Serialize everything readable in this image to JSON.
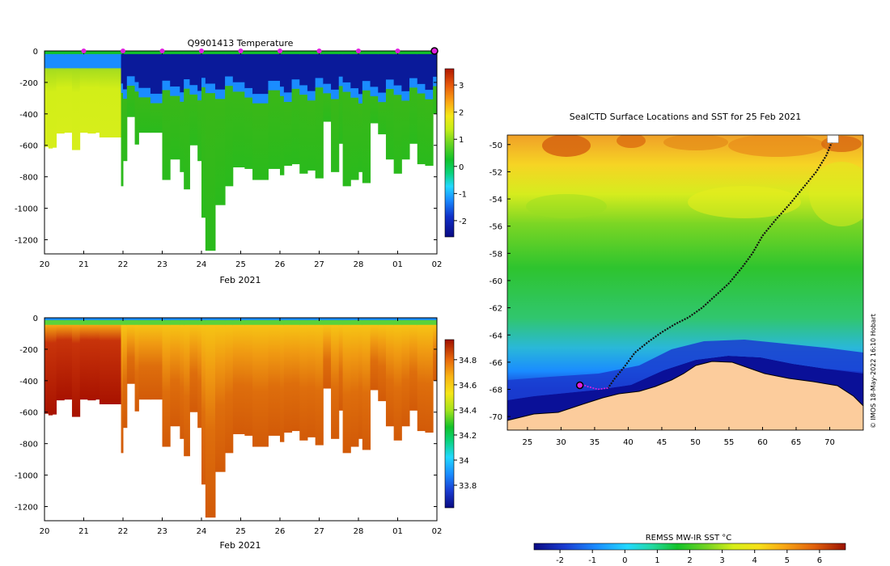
{
  "chart_data": [
    {
      "id": "temperature-section",
      "type": "heatmap",
      "title": "Q9901413  Temperature",
      "xlabel": "Feb 2021",
      "ylabel": "",
      "x_tick_labels": [
        "20",
        "21",
        "22",
        "23",
        "24",
        "25",
        "26",
        "27",
        "28",
        "01",
        "02"
      ],
      "y_tick_labels": [
        "0",
        "-200",
        "-400",
        "-600",
        "-800",
        "-1000",
        "-1200"
      ],
      "y_ticks": [
        0,
        -200,
        -400,
        -600,
        -800,
        -1000,
        -1200
      ],
      "ylim": [
        -1290,
        0
      ],
      "xlim": [
        20,
        30
      ],
      "surface_markers_x": [
        21,
        22,
        23,
        24,
        25,
        26,
        27,
        28,
        29
      ],
      "current_marker_x": 30,
      "colorbar": {
        "range": [
          -2.6,
          3.6
        ],
        "tick_labels": [
          "3",
          "2",
          "1",
          "0",
          "-1",
          "-2"
        ],
        "ticks": [
          3,
          2,
          1,
          0,
          -1,
          -2
        ]
      },
      "profiles": [
        {
          "x": 20.0,
          "max_depth": 610
        },
        {
          "x": 20.1,
          "max_depth": 620
        },
        {
          "x": 20.2,
          "max_depth": 615
        },
        {
          "x": 20.3,
          "max_depth": 525
        },
        {
          "x": 20.5,
          "max_depth": 520
        },
        {
          "x": 20.7,
          "max_depth": 630
        },
        {
          "x": 20.9,
          "max_depth": 520
        },
        {
          "x": 21.1,
          "max_depth": 525
        },
        {
          "x": 21.3,
          "max_depth": 520
        },
        {
          "x": 21.4,
          "max_depth": 550
        },
        {
          "x": 21.7,
          "max_depth": 550
        },
        {
          "x": 21.95,
          "max_depth": 860
        },
        {
          "x": 22.0,
          "max_depth": 700
        },
        {
          "x": 22.1,
          "max_depth": 420
        },
        {
          "x": 22.3,
          "max_depth": 595
        },
        {
          "x": 22.4,
          "max_depth": 520
        },
        {
          "x": 22.7,
          "max_depth": 520
        },
        {
          "x": 23.0,
          "max_depth": 820
        },
        {
          "x": 23.2,
          "max_depth": 690
        },
        {
          "x": 23.45,
          "max_depth": 770
        },
        {
          "x": 23.55,
          "max_depth": 880
        },
        {
          "x": 23.7,
          "max_depth": 600
        },
        {
          "x": 23.9,
          "max_depth": 700
        },
        {
          "x": 24.0,
          "max_depth": 1060
        },
        {
          "x": 24.1,
          "max_depth": 1270
        },
        {
          "x": 24.35,
          "max_depth": 980
        },
        {
          "x": 24.6,
          "max_depth": 860
        },
        {
          "x": 24.8,
          "max_depth": 740
        },
        {
          "x": 25.1,
          "max_depth": 750
        },
        {
          "x": 25.3,
          "max_depth": 820
        },
        {
          "x": 25.7,
          "max_depth": 750
        },
        {
          "x": 26.0,
          "max_depth": 790
        },
        {
          "x": 26.1,
          "max_depth": 730
        },
        {
          "x": 26.3,
          "max_depth": 720
        },
        {
          "x": 26.5,
          "max_depth": 780
        },
        {
          "x": 26.7,
          "max_depth": 760
        },
        {
          "x": 26.9,
          "max_depth": 810
        },
        {
          "x": 27.1,
          "max_depth": 450
        },
        {
          "x": 27.3,
          "max_depth": 770
        },
        {
          "x": 27.5,
          "max_depth": 590
        },
        {
          "x": 27.6,
          "max_depth": 860
        },
        {
          "x": 27.8,
          "max_depth": 820
        },
        {
          "x": 28.0,
          "max_depth": 770
        },
        {
          "x": 28.1,
          "max_depth": 840
        },
        {
          "x": 28.3,
          "max_depth": 460
        },
        {
          "x": 28.5,
          "max_depth": 530
        },
        {
          "x": 28.7,
          "max_depth": 690
        },
        {
          "x": 28.9,
          "max_depth": 780
        },
        {
          "x": 29.1,
          "max_depth": 690
        },
        {
          "x": 29.3,
          "max_depth": 590
        },
        {
          "x": 29.5,
          "max_depth": 720
        },
        {
          "x": 29.7,
          "max_depth": 730
        },
        {
          "x": 29.9,
          "max_depth": 400
        }
      ]
    },
    {
      "id": "salinity-section",
      "type": "heatmap",
      "title": "",
      "xlabel": "Feb 2021",
      "ylabel": "",
      "x_tick_labels": [
        "20",
        "21",
        "22",
        "23",
        "24",
        "25",
        "26",
        "27",
        "28",
        "01",
        "02"
      ],
      "y_tick_labels": [
        "0",
        "-200",
        "-400",
        "-600",
        "-800",
        "-1000",
        "-1200"
      ],
      "y_ticks": [
        0,
        -200,
        -400,
        -600,
        -800,
        -1000,
        -1200
      ],
      "ylim": [
        -1290,
        0
      ],
      "xlim": [
        20,
        30
      ],
      "colorbar": {
        "range": [
          33.62,
          34.96
        ],
        "tick_labels": [
          "34.8",
          "34.6",
          "34.4",
          "34.2",
          "34",
          "33.8"
        ],
        "ticks": [
          34.8,
          34.6,
          34.4,
          34.2,
          34.0,
          33.8
        ]
      }
    },
    {
      "id": "sst-map",
      "type": "heatmap",
      "title": "SealCTD Surface Locations and SST for 25 Feb 2021",
      "xlabel": "",
      "ylabel": "",
      "x_tick_labels": [
        "25",
        "30",
        "35",
        "40",
        "45",
        "50",
        "55",
        "60",
        "65",
        "70"
      ],
      "x_ticks": [
        25,
        30,
        35,
        40,
        45,
        50,
        55,
        60,
        65,
        70
      ],
      "y_tick_labels": [
        "-50",
        "-52",
        "-54",
        "-56",
        "-58",
        "-60",
        "-62",
        "-64",
        "-66",
        "-68",
        "-70"
      ],
      "y_ticks": [
        -50,
        -52,
        -54,
        -56,
        -58,
        -60,
        -62,
        -64,
        -66,
        -68,
        -70
      ],
      "xlim": [
        22,
        75
      ],
      "ylim": [
        -71,
        -49.3
      ],
      "colorbar": {
        "label": "REMSS MW-IR SST °C",
        "range": [
          -2.8,
          6.8
        ],
        "tick_labels": [
          "-2",
          "-1",
          "0",
          "1",
          "2",
          "3",
          "4",
          "5",
          "6"
        ],
        "ticks": [
          -2,
          -1,
          0,
          1,
          2,
          3,
          4,
          5,
          6
        ]
      },
      "track": [
        [
          70.5,
          -49.6
        ],
        [
          69.5,
          -50.8
        ],
        [
          68,
          -52
        ],
        [
          66,
          -53.2
        ],
        [
          64,
          -54.4
        ],
        [
          62,
          -55.5
        ],
        [
          60,
          -56.7
        ],
        [
          58.5,
          -58
        ],
        [
          57,
          -59
        ],
        [
          55,
          -60.2
        ],
        [
          53,
          -61.1
        ],
        [
          51,
          -62
        ],
        [
          49,
          -62.7
        ],
        [
          47,
          -63.2
        ],
        [
          45,
          -63.8
        ],
        [
          43,
          -64.5
        ],
        [
          41,
          -65.3
        ],
        [
          39.5,
          -66.3
        ],
        [
          38,
          -67.2
        ],
        [
          37,
          -67.9
        ]
      ],
      "track_tail": [
        [
          37,
          -67.9
        ],
        [
          35.5,
          -68
        ],
        [
          34,
          -67.8
        ],
        [
          33,
          -67.6
        ]
      ],
      "current_location": [
        32.8,
        -67.7
      ],
      "start_location": [
        70.6,
        -49.4
      ]
    }
  ],
  "copyright": "© IMOS 18-May-2022 16:10 Hobart"
}
